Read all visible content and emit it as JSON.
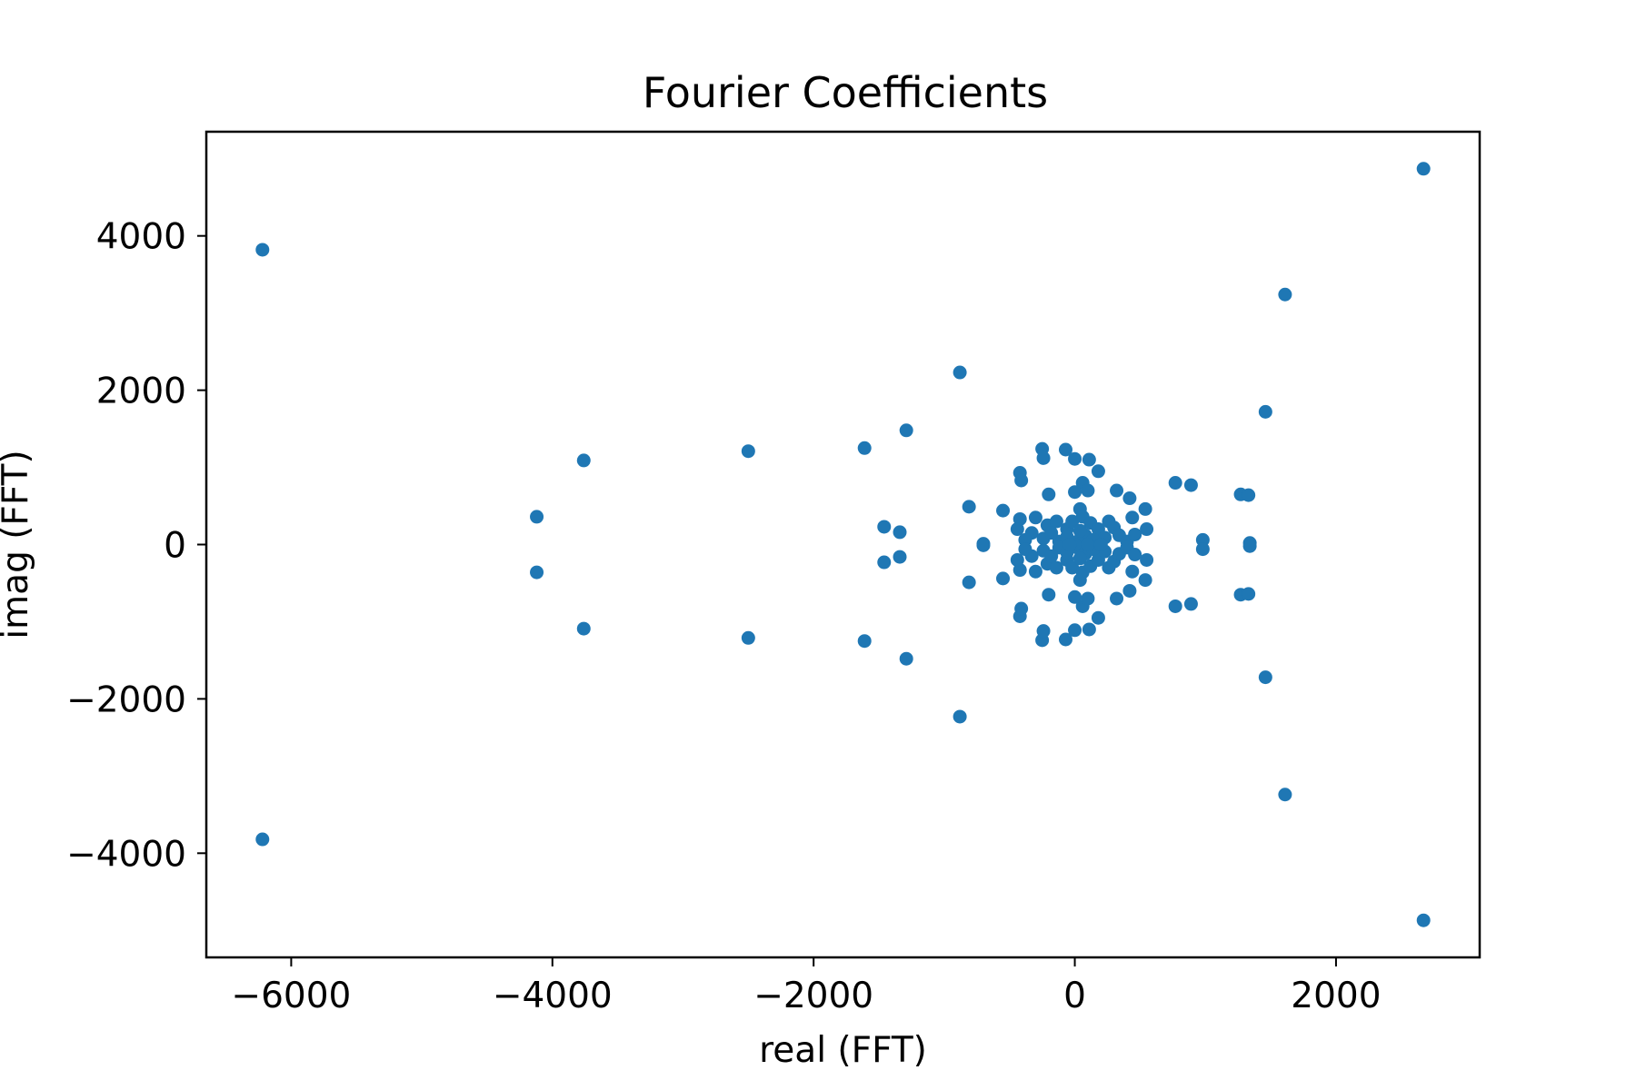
{
  "chart_data": {
    "type": "scatter",
    "title": "Fourier Coefficients",
    "xlabel": "real (FFT)",
    "ylabel": "imag (FFT)",
    "xlim": [
      -6650,
      3100
    ],
    "ylim": [
      -5350,
      5350
    ],
    "xticks": [
      -6000,
      -4000,
      -2000,
      0,
      2000
    ],
    "yticks": [
      -4000,
      -2000,
      0,
      2000,
      4000
    ],
    "grid": false,
    "marker_color": "#1f77b4",
    "series": [
      {
        "points": [
          [
            -6220,
            3820
          ],
          [
            -6220,
            -3820
          ],
          [
            2670,
            4870
          ],
          [
            2670,
            -4870
          ],
          [
            1610,
            3240
          ],
          [
            1610,
            -3240
          ],
          [
            1460,
            1720
          ],
          [
            1460,
            -1720
          ],
          [
            -880,
            2230
          ],
          [
            -880,
            -2230
          ],
          [
            -4120,
            360
          ],
          [
            -4120,
            -360
          ],
          [
            -3760,
            1090
          ],
          [
            -3760,
            -1090
          ],
          [
            -2500,
            1210
          ],
          [
            -2500,
            -1210
          ],
          [
            -1610,
            1250
          ],
          [
            -1610,
            -1250
          ],
          [
            -1290,
            1480
          ],
          [
            -1290,
            -1480
          ],
          [
            -1460,
            230
          ],
          [
            -1460,
            -230
          ],
          [
            -1340,
            160
          ],
          [
            -1340,
            -160
          ],
          [
            -810,
            490
          ],
          [
            -810,
            -490
          ],
          [
            -700,
            10
          ],
          [
            -700,
            -10
          ],
          [
            -550,
            440
          ],
          [
            -550,
            -440
          ],
          [
            -420,
            930
          ],
          [
            -420,
            -930
          ],
          [
            -410,
            830
          ],
          [
            -410,
            -830
          ],
          [
            -250,
            1240
          ],
          [
            -250,
            -1240
          ],
          [
            -240,
            1120
          ],
          [
            -240,
            -1120
          ],
          [
            -200,
            650
          ],
          [
            -200,
            -650
          ],
          [
            -70,
            1230
          ],
          [
            -70,
            -1230
          ],
          [
            0,
            1110
          ],
          [
            0,
            -1110
          ],
          [
            110,
            1100
          ],
          [
            110,
            -1100
          ],
          [
            180,
            950
          ],
          [
            180,
            -950
          ],
          [
            60,
            800
          ],
          [
            60,
            -800
          ],
          [
            0,
            680
          ],
          [
            0,
            -680
          ],
          [
            100,
            700
          ],
          [
            100,
            -700
          ],
          [
            320,
            700
          ],
          [
            320,
            -700
          ],
          [
            420,
            600
          ],
          [
            420,
            -600
          ],
          [
            440,
            350
          ],
          [
            440,
            -350
          ],
          [
            540,
            460
          ],
          [
            540,
            -460
          ],
          [
            550,
            200
          ],
          [
            550,
            -200
          ],
          [
            770,
            800
          ],
          [
            770,
            -800
          ],
          [
            890,
            770
          ],
          [
            890,
            -770
          ],
          [
            980,
            60
          ],
          [
            980,
            -60
          ],
          [
            1270,
            650
          ],
          [
            1270,
            -650
          ],
          [
            1330,
            640
          ],
          [
            1330,
            -640
          ],
          [
            1340,
            20
          ],
          [
            1340,
            -20
          ],
          [
            -420,
            330
          ],
          [
            -420,
            -330
          ],
          [
            -300,
            350
          ],
          [
            -300,
            -350
          ],
          [
            -210,
            250
          ],
          [
            -210,
            -250
          ],
          [
            -330,
            150
          ],
          [
            -330,
            -150
          ],
          [
            -440,
            200
          ],
          [
            -440,
            -200
          ],
          [
            -240,
            80
          ],
          [
            -240,
            -80
          ],
          [
            -140,
            300
          ],
          [
            -140,
            -300
          ],
          [
            -60,
            200
          ],
          [
            -60,
            -200
          ],
          [
            -20,
            300
          ],
          [
            -20,
            -300
          ],
          [
            40,
            460
          ],
          [
            40,
            -460
          ],
          [
            60,
            360
          ],
          [
            60,
            -360
          ],
          [
            80,
            120
          ],
          [
            80,
            -120
          ],
          [
            120,
            280
          ],
          [
            120,
            -280
          ],
          [
            180,
            200
          ],
          [
            180,
            -200
          ],
          [
            230,
            90
          ],
          [
            230,
            -90
          ],
          [
            260,
            300
          ],
          [
            260,
            -300
          ],
          [
            300,
            220
          ],
          [
            300,
            -220
          ],
          [
            340,
            120
          ],
          [
            340,
            -120
          ],
          [
            400,
            40
          ],
          [
            400,
            -40
          ],
          [
            460,
            130
          ],
          [
            460,
            -130
          ],
          [
            -120,
            40
          ],
          [
            -120,
            -40
          ],
          [
            -60,
            100
          ],
          [
            -60,
            -100
          ],
          [
            20,
            40
          ],
          [
            20,
            -40
          ],
          [
            40,
            180
          ],
          [
            40,
            -180
          ],
          [
            140,
            60
          ],
          [
            140,
            -60
          ],
          [
            -380,
            60
          ],
          [
            -380,
            -60
          ],
          [
            -180,
            150
          ],
          [
            -180,
            -150
          ],
          [
            100,
            0
          ],
          [
            0,
            0
          ],
          [
            -40,
            0
          ],
          [
            200,
            0
          ]
        ]
      }
    ]
  }
}
